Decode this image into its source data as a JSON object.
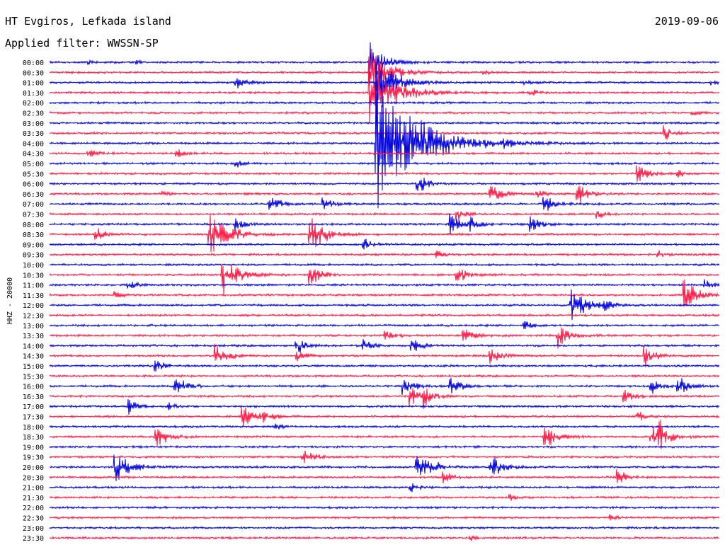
{
  "header": {
    "station": "HT Evgiros, Lefkada island",
    "filter": "Applied filter: WWSSN-SP",
    "date": "2019-09-06"
  },
  "colors": {
    "trace_a": "#0000dd",
    "trace_b": "#ff1744",
    "text": "#000000"
  },
  "chart_data": {
    "type": "line",
    "title": "",
    "ylabel": "HHZ - 20000",
    "xlabel": "",
    "grid": false,
    "legend": "none",
    "rows": [
      "00:00",
      "00:30",
      "01:00",
      "01:30",
      "02:00",
      "02:30",
      "03:00",
      "03:30",
      "04:00",
      "04:30",
      "05:00",
      "05:30",
      "06:00",
      "06:30",
      "07:00",
      "07:30",
      "08:00",
      "08:30",
      "09:00",
      "09:30",
      "10:00",
      "10:30",
      "11:00",
      "11:30",
      "12:00",
      "12:30",
      "13:00",
      "13:30",
      "14:00",
      "14:30",
      "15:00",
      "15:30",
      "16:00",
      "16:30",
      "17:00",
      "17:30",
      "18:00",
      "18:30",
      "19:00",
      "19:30",
      "20:00",
      "20:30",
      "21:00",
      "21:30",
      "22:00",
      "22:30",
      "23:00",
      "23:30"
    ],
    "series": [
      {
        "values": [
          [
            "00:00",
            0.48,
            30
          ],
          [
            "00:00",
            0.06,
            3
          ],
          [
            "00:00",
            0.13,
            3
          ]
        ]
      },
      {
        "values": [
          [
            "00:30",
            0.48,
            40
          ],
          [
            "00:30",
            0.65,
            3
          ],
          [
            "01:00",
            0.49,
            40
          ],
          [
            "01:00",
            0.28,
            12
          ],
          [
            "01:00",
            0.71,
            3
          ],
          [
            "01:00",
            0.99,
            4
          ]
        ]
      },
      {
        "values": [
          [
            "01:30",
            0.48,
            60
          ],
          [
            "01:30",
            0.72,
            5
          ],
          [
            "02:30",
            0.96,
            5
          ],
          [
            "03:30",
            0.92,
            12
          ]
        ]
      },
      {
        "values": [
          [
            "04:00",
            0.49,
            110
          ],
          [
            "04:00",
            0.68,
            6
          ],
          [
            "04:30",
            0.06,
            8
          ],
          [
            "04:30",
            0.19,
            8
          ],
          [
            "05:00",
            0.28,
            6
          ],
          [
            "05:30",
            0.88,
            16
          ],
          [
            "05:30",
            0.94,
            5
          ]
        ]
      },
      {
        "values": [
          [
            "06:00",
            0.55,
            12
          ],
          [
            "06:00",
            0.56,
            6
          ],
          [
            "06:30",
            0.17,
            5
          ],
          [
            "06:30",
            0.66,
            18
          ],
          [
            "06:30",
            0.73,
            6
          ],
          [
            "06:30",
            0.79,
            18
          ],
          [
            "07:00",
            0.41,
            12
          ],
          [
            "07:00",
            0.33,
            14
          ],
          [
            "07:00",
            0.74,
            14
          ],
          [
            "07:30",
            0.61,
            10
          ],
          [
            "07:30",
            0.82,
            8
          ]
        ]
      },
      {
        "values": [
          [
            "08:00",
            0.28,
            12
          ],
          [
            "08:00",
            0.6,
            18
          ],
          [
            "08:00",
            0.63,
            10
          ],
          [
            "08:00",
            0.72,
            14
          ],
          [
            "08:30",
            0.07,
            12
          ],
          [
            "08:30",
            0.24,
            40
          ],
          [
            "08:30",
            0.39,
            30
          ],
          [
            "09:00",
            0.47,
            10
          ],
          [
            "09:30",
            0.58,
            6
          ],
          [
            "09:30",
            0.91,
            6
          ]
        ]
      },
      {
        "values": [
          [
            "10:30",
            0.26,
            30
          ],
          [
            "10:30",
            0.39,
            18
          ],
          [
            "10:30",
            0.61,
            14
          ],
          [
            "11:00",
            0.12,
            8
          ],
          [
            "11:00",
            0.98,
            8
          ],
          [
            "11:30",
            0.1,
            6
          ],
          [
            "11:30",
            0.95,
            26
          ],
          [
            "12:00",
            0.78,
            30
          ],
          [
            "12:00",
            0.83,
            8
          ]
        ]
      },
      {
        "values": [
          [
            "13:00",
            0.71,
            8
          ],
          [
            "13:30",
            0.5,
            12
          ],
          [
            "13:30",
            0.62,
            14
          ],
          [
            "13:30",
            0.76,
            18
          ],
          [
            "14:00",
            0.37,
            14
          ],
          [
            "14:00",
            0.47,
            10
          ],
          [
            "14:00",
            0.54,
            14
          ],
          [
            "14:30",
            0.25,
            18
          ],
          [
            "14:30",
            0.37,
            10
          ],
          [
            "14:30",
            0.66,
            14
          ],
          [
            "14:30",
            0.89,
            16
          ],
          [
            "15:00",
            0.16,
            10
          ]
        ]
      },
      {
        "values": [
          [
            "16:00",
            0.19,
            16
          ],
          [
            "16:00",
            0.53,
            16
          ],
          [
            "16:00",
            0.6,
            16
          ],
          [
            "16:00",
            0.9,
            12
          ],
          [
            "16:00",
            0.94,
            14
          ],
          [
            "16:30",
            0.54,
            18
          ],
          [
            "16:30",
            0.56,
            14
          ],
          [
            "16:30",
            0.86,
            12
          ],
          [
            "17:00",
            0.12,
            12
          ],
          [
            "17:00",
            0.18,
            6
          ],
          [
            "17:30",
            0.29,
            18
          ],
          [
            "17:30",
            0.32,
            12
          ],
          [
            "17:30",
            0.88,
            10
          ],
          [
            "18:00",
            0.34,
            6
          ]
        ]
      },
      {
        "values": [
          [
            "18:30",
            0.16,
            20
          ],
          [
            "18:30",
            0.74,
            20
          ],
          [
            "18:30",
            0.9,
            20
          ],
          [
            "18:30",
            0.91,
            18
          ],
          [
            "19:30",
            0.38,
            14
          ],
          [
            "20:00",
            0.1,
            28
          ],
          [
            "20:00",
            0.55,
            28
          ],
          [
            "20:00",
            0.66,
            18
          ],
          [
            "20:30",
            0.59,
            10
          ],
          [
            "20:30",
            0.85,
            12
          ],
          [
            "21:00",
            0.54,
            8
          ],
          [
            "21:30",
            0.69,
            5
          ]
        ]
      },
      {
        "values": [
          [
            "22:30",
            0.84,
            4
          ],
          [
            "23:30",
            0.63,
            4
          ]
        ]
      }
    ]
  }
}
